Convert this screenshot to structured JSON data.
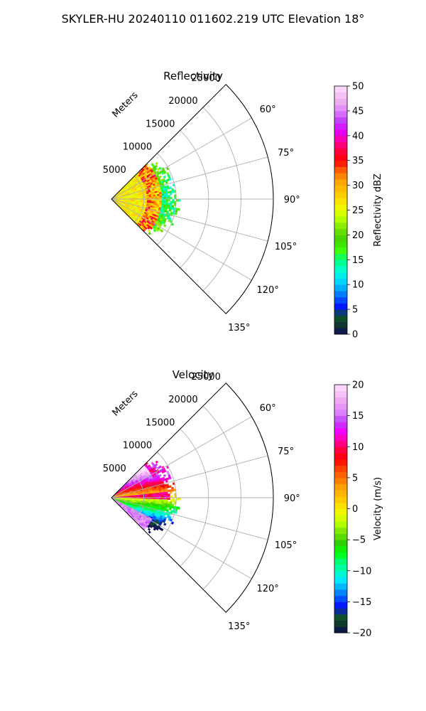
{
  "figure": {
    "suptitle": "SKYLER-HU  20240110  011602.219 UTC Elevation 18°"
  },
  "chart_data": [
    {
      "type": "polar-sector-heatmap",
      "title": "Reflectivity",
      "radial_label": "Meters",
      "radial_ticks": [
        5000,
        10000,
        15000,
        20000,
        25000
      ],
      "radial_tick_labels": [
        "5000",
        "10000",
        "15000",
        "20000",
        "25000"
      ],
      "rlim": [
        0,
        25000
      ],
      "theta_ticks_deg": [
        60,
        75,
        90,
        105,
        120,
        135
      ],
      "theta_tick_labels": [
        "60°",
        "75°",
        "90°",
        "105°",
        "120°",
        "135°"
      ],
      "theta_range_deg": [
        45,
        135
      ],
      "grid": true,
      "colorbar": {
        "label": "Reflectivity dBZ",
        "min": 0,
        "max": 50,
        "ticks": [
          0,
          5,
          10,
          15,
          20,
          25,
          30,
          35,
          40,
          45,
          50
        ],
        "tick_labels": [
          "0",
          "5",
          "10",
          "15",
          "20",
          "25",
          "30",
          "35",
          "40",
          "45",
          "50"
        ]
      },
      "data_extent_m": 11000,
      "field": "reflectivity"
    },
    {
      "type": "polar-sector-heatmap",
      "title": "Velocity",
      "radial_label": "Meters",
      "radial_ticks": [
        5000,
        10000,
        15000,
        20000,
        25000
      ],
      "radial_tick_labels": [
        "5000",
        "10000",
        "15000",
        "20000",
        "25000"
      ],
      "rlim": [
        0,
        25000
      ],
      "theta_ticks_deg": [
        60,
        75,
        90,
        105,
        120,
        135
      ],
      "theta_tick_labels": [
        "60°",
        "75°",
        "90°",
        "105°",
        "120°",
        "135°"
      ],
      "theta_range_deg": [
        45,
        135
      ],
      "grid": true,
      "colorbar": {
        "label": "Velocity (m/s)",
        "min": -20,
        "max": 20,
        "ticks": [
          -20,
          -15,
          -10,
          -5,
          0,
          5,
          10,
          15,
          20
        ],
        "tick_labels": [
          "−20",
          "−15",
          "−10",
          "−5",
          "0",
          "5",
          "10",
          "15",
          "20"
        ]
      },
      "data_extent_m": 11000,
      "field": "velocity"
    }
  ]
}
